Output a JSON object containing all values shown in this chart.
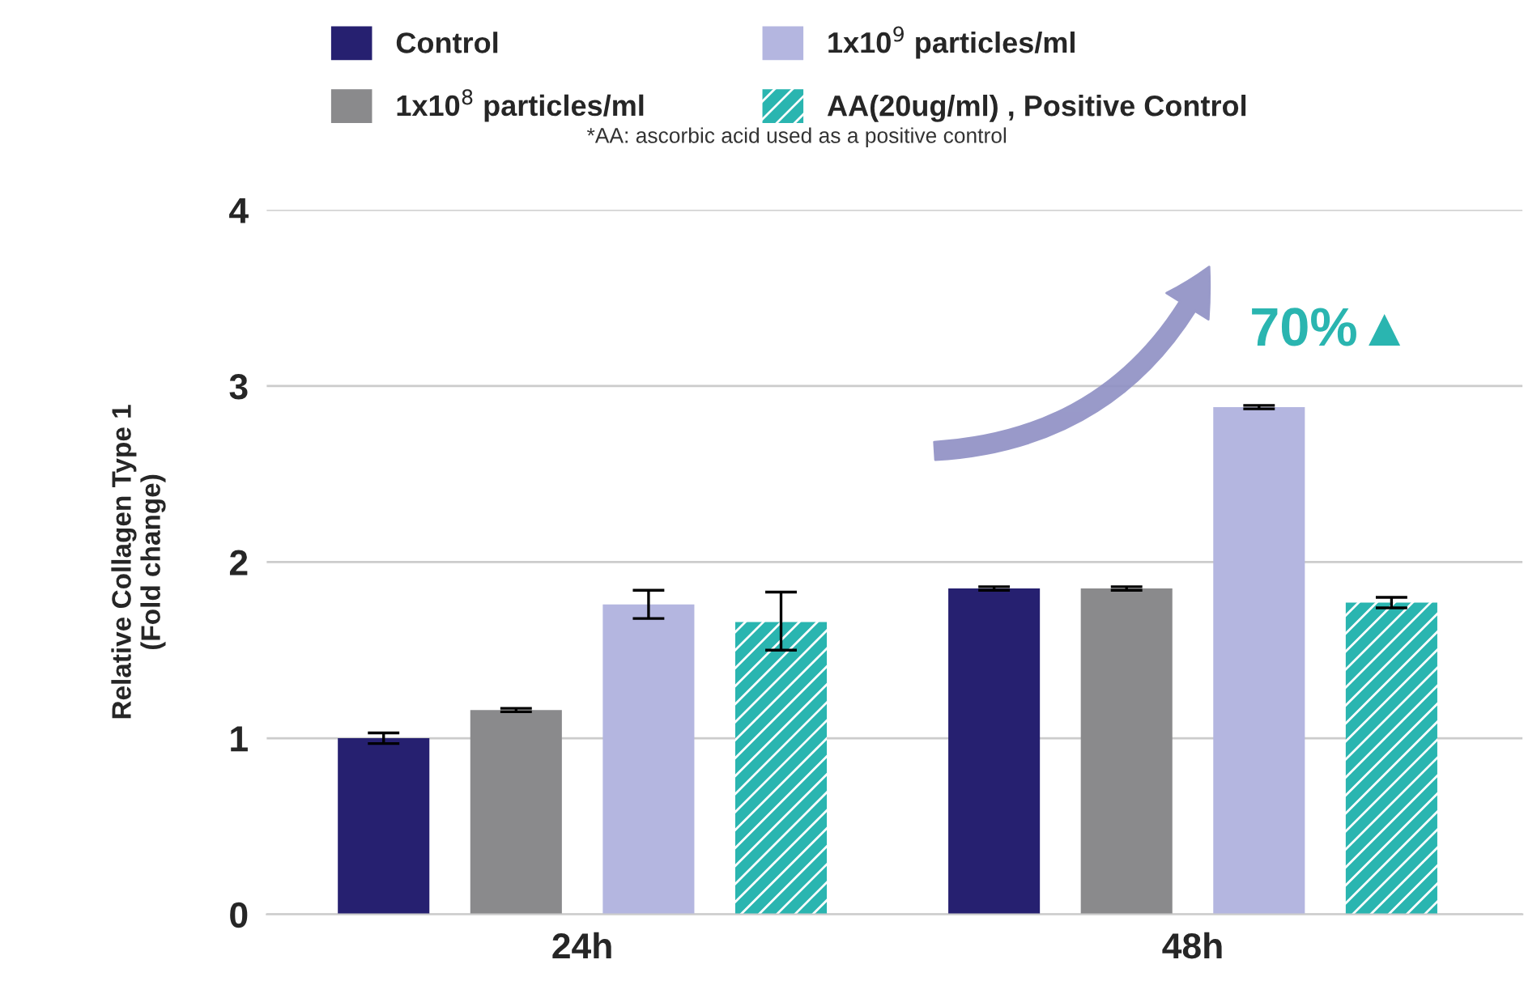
{
  "chart_data": {
    "type": "bar",
    "categories": [
      "24h",
      "48h"
    ],
    "ylabel": "Relative Collagen Type 1\n(Fold change)",
    "ylim": [
      0,
      4
    ],
    "yticks": [
      0,
      1,
      2,
      3,
      4
    ],
    "grid": "y",
    "legend": "top",
    "series": [
      {
        "name": "Control",
        "color": "#262070",
        "values": [
          1.0,
          1.85
        ],
        "errors": [
          0.03,
          0.01
        ]
      },
      {
        "name": "1x10$^{8}$ particles/ml",
        "color": "#8a8a8c",
        "values": [
          1.16,
          1.85
        ],
        "errors": [
          0.01,
          0.01
        ]
      },
      {
        "name": "1x10$^{9}$ particles/ml",
        "color": "#b4b6e0",
        "values": [
          1.76,
          2.88
        ],
        "errors": [
          0.08,
          0.01
        ]
      },
      {
        "name": "AA(20ug/ml) , Positive Control",
        "color": "#2ab5b0",
        "values": [
          1.66,
          1.77
        ],
        "errors": [
          [
            1.5,
            1.83
          ],
          0.03
        ]
      }
    ],
    "annotations": [
      "70%▲",
      "*AA: ascorbic acid used as a positive control"
    ]
  }
}
